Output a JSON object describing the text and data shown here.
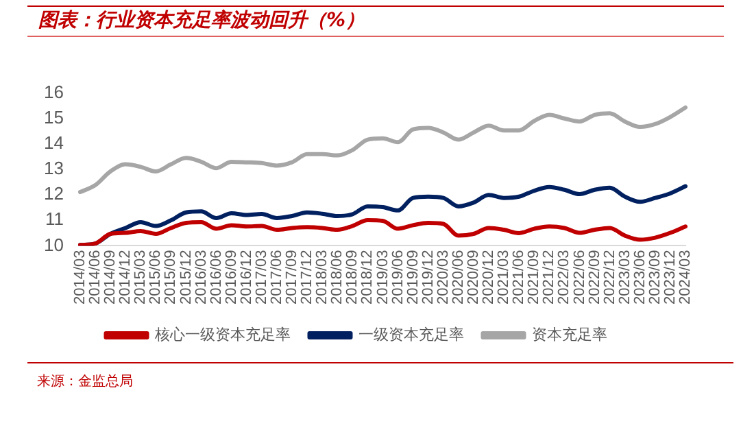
{
  "chart_data": {
    "type": "line",
    "title": "图表：行业资本充足率波动回升（%）",
    "annotations": [
      "来源：金监总局"
    ],
    "categories": [
      "2014/03",
      "2014/06",
      "2014/09",
      "2014/12",
      "2015/03",
      "2015/06",
      "2015/09",
      "2015/12",
      "2016/03",
      "2016/06",
      "2016/09",
      "2016/12",
      "2017/03",
      "2017/06",
      "2017/09",
      "2017/12",
      "2018/03",
      "2018/06",
      "2018/09",
      "2018/12",
      "2019/03",
      "2019/06",
      "2019/09",
      "2019/12",
      "2020/03",
      "2020/06",
      "2020/09",
      "2020/12",
      "2021/03",
      "2021/06",
      "2021/09",
      "2021/12",
      "2022/03",
      "2022/06",
      "2022/09",
      "2022/12",
      "2023/03",
      "2023/06",
      "2023/09",
      "2023/12",
      "2024/03"
    ],
    "series": [
      {
        "name": "核心一级资本充足率",
        "color": "#c00000",
        "values": [
          10.03,
          10.09,
          10.47,
          10.51,
          10.58,
          10.47,
          10.7,
          10.9,
          10.93,
          10.67,
          10.81,
          10.76,
          10.78,
          10.63,
          10.7,
          10.73,
          10.7,
          10.63,
          10.78,
          11.01,
          10.98,
          10.67,
          10.81,
          10.9,
          10.86,
          10.4,
          10.47,
          10.7,
          10.63,
          10.5,
          10.67,
          10.76,
          10.7,
          10.51,
          10.63,
          10.7,
          10.4,
          10.24,
          10.32,
          10.51,
          10.76
        ]
      },
      {
        "name": "一级资本充足率",
        "color": "#002060",
        "values": [
          10.03,
          10.09,
          10.47,
          10.7,
          10.93,
          10.78,
          11.0,
          11.31,
          11.35,
          11.09,
          11.28,
          11.21,
          11.25,
          11.09,
          11.17,
          11.31,
          11.26,
          11.17,
          11.24,
          11.55,
          11.52,
          11.39,
          11.88,
          11.93,
          11.88,
          11.55,
          11.7,
          12.0,
          11.88,
          11.93,
          12.16,
          12.31,
          12.2,
          12.03,
          12.2,
          12.28,
          11.93,
          11.73,
          11.88,
          12.06,
          12.34
        ]
      },
      {
        "name": "资本充足率",
        "color": "#a6a6a6",
        "values": [
          12.11,
          12.38,
          12.92,
          13.2,
          13.1,
          12.92,
          13.2,
          13.45,
          13.3,
          13.05,
          13.3,
          13.28,
          13.25,
          13.15,
          13.28,
          13.6,
          13.6,
          13.55,
          13.76,
          14.17,
          14.22,
          14.07,
          14.57,
          14.63,
          14.45,
          14.17,
          14.45,
          14.72,
          14.53,
          14.53,
          14.9,
          15.14,
          15.0,
          14.88,
          15.14,
          15.2,
          14.88,
          14.67,
          14.78,
          15.06,
          15.43
        ]
      }
    ],
    "ylim": [
      10,
      16
    ],
    "yticks": [
      10,
      11,
      12,
      13,
      14,
      15,
      16
    ],
    "grid": false,
    "legend": "bottom",
    "marker": "none",
    "line_style": "solid"
  }
}
